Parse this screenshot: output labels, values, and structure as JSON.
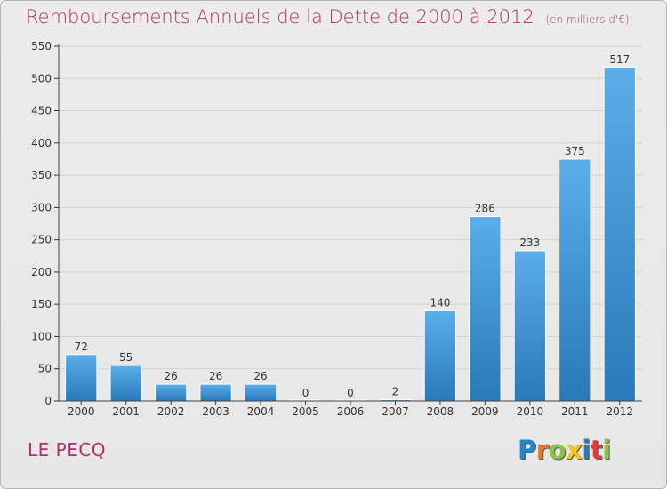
{
  "header": {
    "title": "Remboursements Annuels de la Dette de 2000 à 2012",
    "subtitle": "(en milliers d'€)"
  },
  "footer": {
    "commune": "LE PECQ",
    "logo": {
      "text": "Proxiti",
      "colors": [
        "#1e88c8",
        "#e87722",
        "#8bc34a",
        "#f5c518",
        "#2c7bb6",
        "#e53935",
        "#8bc34a"
      ]
    }
  },
  "colors": {
    "title": "#b0306a",
    "bar_top": "#5aaeea",
    "bar_bottom": "#2a79b8",
    "background": "#e9e9e9",
    "grid": "#d2d2d2"
  },
  "chart_data": {
    "type": "bar",
    "categories": [
      "2000",
      "2001",
      "2002",
      "2003",
      "2004",
      "2005",
      "2006",
      "2007",
      "2008",
      "2009",
      "2010",
      "2011",
      "2012"
    ],
    "values": [
      72,
      55,
      26,
      26,
      26,
      0,
      0,
      2,
      140,
      286,
      233,
      375,
      517
    ],
    "data_labels": [
      "72",
      "55",
      "26",
      "26",
      "26",
      "0",
      "0",
      "2",
      "140",
      "286",
      "233",
      "375",
      "517"
    ],
    "yticks": [
      "0",
      "50",
      "100",
      "150",
      "200",
      "250",
      "300",
      "350",
      "400",
      "450",
      "500",
      "550"
    ],
    "ylim": [
      0,
      550
    ],
    "grid": true,
    "legend": "none"
  }
}
